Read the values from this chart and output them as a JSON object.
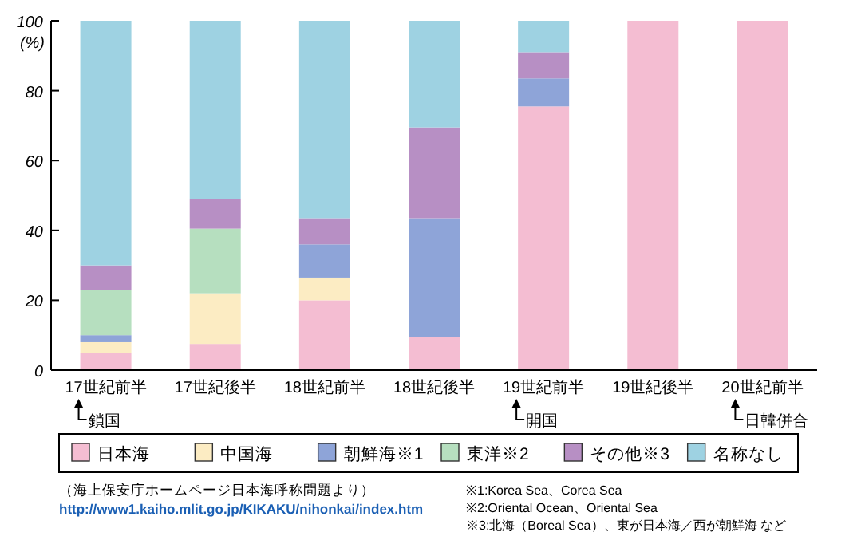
{
  "chart_data": {
    "type": "bar",
    "stacked": true,
    "ylabel": "(%)",
    "categories": [
      "17世紀前半",
      "17世紀後半",
      "18世紀前半",
      "18世紀後半",
      "19世紀前半",
      "19世紀後半",
      "20世紀前半"
    ],
    "series": [
      {
        "name": "日本海",
        "color": "#f4bdd2",
        "values": [
          5,
          7.5,
          20,
          9.5,
          75.5,
          100,
          100
        ]
      },
      {
        "name": "中国海",
        "color": "#fcecc3",
        "values": [
          3,
          14.5,
          6.5,
          0,
          0,
          0,
          0
        ]
      },
      {
        "name": "朝鮮海※1",
        "color": "#8ea4d8",
        "values": [
          2,
          0,
          9.5,
          34,
          8,
          0,
          0
        ]
      },
      {
        "name": "東洋※2",
        "color": "#b6dfbf",
        "values": [
          13,
          18.5,
          0,
          0,
          0,
          0,
          0
        ]
      },
      {
        "name": "その他※3",
        "color": "#b78fc4",
        "values": [
          7,
          8.5,
          7.5,
          26,
          7.5,
          0,
          0
        ]
      },
      {
        "name": "名称なし",
        "color": "#9ed2e2",
        "values": [
          70,
          51,
          56.5,
          30.5,
          9,
          0,
          0
        ]
      }
    ],
    "ylim": [
      0,
      100
    ],
    "yticks": [
      0,
      20,
      40,
      60,
      80,
      100
    ],
    "grid": false,
    "legend": "bottom",
    "annotations": [
      "鎖国",
      "開国",
      "日韓併合",
      "（海上保安庁ホームページ日本海呼称問題より）",
      "http://www1.kaiho.mlit.go.jp/KIKAKU/nihonkai/index.htm",
      "※1:Korea Sea、Corea Sea",
      "※2:Oriental Ocean、Oriental Sea",
      "※3:北海（Boreal Sea）、東が日本海／西が朝鮮海 など"
    ]
  }
}
